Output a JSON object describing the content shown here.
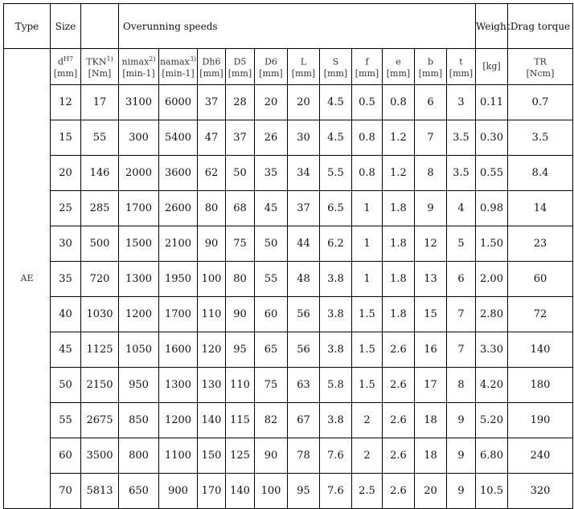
{
  "header": {
    "type": "Type",
    "size": "Size",
    "blank": "",
    "speeds": "Overunning speeds",
    "weight": "Weight",
    "drag": "Drag torque"
  },
  "subheader": [
    {
      "sym": "d",
      "sup": "H7",
      "unit": "[mm]"
    },
    {
      "sym": "TKN",
      "sup": "1)",
      "unit": "[Nm]"
    },
    {
      "sym": "nimax",
      "sup": "2)",
      "unit": "[min-1]"
    },
    {
      "sym": "namax",
      "sup": "3)",
      "unit": "[min-1]"
    },
    {
      "sym": "Dh6",
      "sup": "",
      "unit": "[mm]"
    },
    {
      "sym": "D5",
      "sup": "",
      "unit": "[mm]"
    },
    {
      "sym": "D6",
      "sup": "",
      "unit": "[mm]"
    },
    {
      "sym": "L",
      "sup": "",
      "unit": "[mm]"
    },
    {
      "sym": "S",
      "sup": "",
      "unit": "[mm]"
    },
    {
      "sym": "f",
      "sup": "",
      "unit": "[mm]"
    },
    {
      "sym": "e",
      "sup": "",
      "unit": "[mm]"
    },
    {
      "sym": "b",
      "sup": "",
      "unit": "[mm]"
    },
    {
      "sym": "t",
      "sup": "",
      "unit": "[mm]"
    },
    {
      "sym": "",
      "sup": "",
      "unit": "[kg]"
    },
    {
      "sym": "TR",
      "sup": "",
      "unit": "[Ncm]"
    }
  ],
  "type_value": "AE",
  "rows": [
    [
      "12",
      "17",
      "3100",
      "6000",
      "37",
      "28",
      "20",
      "20",
      "4.5",
      "0.5",
      "0.8",
      "6",
      "3",
      "0.11",
      "0.7"
    ],
    [
      "15",
      "55",
      "300",
      "5400",
      "47",
      "37",
      "26",
      "30",
      "4.5",
      "0.8",
      "1.2",
      "7",
      "3.5",
      "0.30",
      "3.5"
    ],
    [
      "20",
      "146",
      "2000",
      "3600",
      "62",
      "50",
      "35",
      "34",
      "5.5",
      "0.8",
      "1.2",
      "8",
      "3.5",
      "0.55",
      "8.4"
    ],
    [
      "25",
      "285",
      "1700",
      "2600",
      "80",
      "68",
      "45",
      "37",
      "6.5",
      "1",
      "1.8",
      "9",
      "4",
      "0.98",
      "14"
    ],
    [
      "30",
      "500",
      "1500",
      "2100",
      "90",
      "75",
      "50",
      "44",
      "6.2",
      "1",
      "1.8",
      "12",
      "5",
      "1.50",
      "23"
    ],
    [
      "35",
      "720",
      "1300",
      "1950",
      "100",
      "80",
      "55",
      "48",
      "3.8",
      "1",
      "1.8",
      "13",
      "6",
      "2.00",
      "60"
    ],
    [
      "40",
      "1030",
      "1200",
      "1700",
      "110",
      "90",
      "60",
      "56",
      "3.8",
      "1.5",
      "1.8",
      "15",
      "7",
      "2.80",
      "72"
    ],
    [
      "45",
      "1125",
      "1050",
      "1600",
      "120",
      "95",
      "65",
      "56",
      "3.8",
      "1.5",
      "2.6",
      "16",
      "7",
      "3.30",
      "140"
    ],
    [
      "50",
      "2150",
      "950",
      "1300",
      "130",
      "110",
      "75",
      "63",
      "5.8",
      "1.5",
      "2.6",
      "17",
      "8",
      "4.20",
      "180"
    ],
    [
      "55",
      "2675",
      "850",
      "1200",
      "140",
      "115",
      "82",
      "67",
      "3.8",
      "2",
      "2.6",
      "18",
      "9",
      "5.20",
      "190"
    ],
    [
      "60",
      "3500",
      "800",
      "1100",
      "150",
      "125",
      "90",
      "78",
      "7.6",
      "2",
      "2.6",
      "18",
      "9",
      "6.80",
      "240"
    ],
    [
      "70",
      "5813",
      "650",
      "900",
      "170",
      "140",
      "100",
      "95",
      "7.6",
      "2.5",
      "2.6",
      "20",
      "9",
      "10.5",
      "320"
    ]
  ]
}
